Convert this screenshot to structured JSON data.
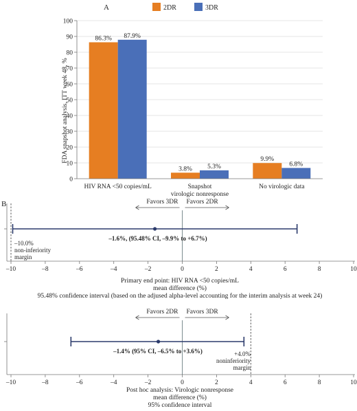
{
  "chart_data": [
    {
      "type": "bar",
      "panel": "A",
      "ylabel": "FDA snapshot analysis, ITT week 48, %",
      "ylim": [
        0,
        100
      ],
      "yticks": [
        0,
        10,
        20,
        30,
        40,
        50,
        60,
        70,
        80,
        90,
        100
      ],
      "grid": true,
      "legend_placement": "top-center",
      "categories": [
        {
          "lines": [
            "HIV RNA <50 copies/mL"
          ]
        },
        {
          "lines": [
            "Snapshot",
            "virologic nonresponse"
          ]
        },
        {
          "lines": [
            "No virologic data"
          ]
        }
      ],
      "series": [
        {
          "name": "2DR",
          "color": "#E67E22",
          "values": [
            86.3,
            3.8,
            9.9
          ],
          "labels": [
            "86.3%",
            "3.8%",
            "9.9%"
          ]
        },
        {
          "name": "3DR",
          "color": "#4A6FB8",
          "values": [
            87.9,
            5.3,
            6.8
          ],
          "labels": [
            "87.9%",
            "5.3%",
            "6.8%"
          ]
        }
      ]
    },
    {
      "type": "forest",
      "panel": "B",
      "xlim": [
        -10,
        10
      ],
      "xticks": [
        -10,
        -8,
        -6,
        -4,
        -2,
        0,
        2,
        4,
        6,
        8,
        10
      ],
      "estimate": -1.6,
      "ci": [
        -9.9,
        6.7
      ],
      "estimate_label": "–1.6%, (95.48% CI, –9.9% to +6.7%)",
      "margin": -10,
      "margin_label": [
        "–10.0%",
        "non-inferiority",
        "margin"
      ],
      "favors_left": "Favors 3DR",
      "favors_right": "Favors 2DR",
      "caption": [
        "Primary end point: HIV RNA <50 copies/mL",
        "mean difference (%)",
        "95.48% confidence interval (based on the adjused alpha-level accounting for the interim analysis at week 24)"
      ]
    },
    {
      "type": "forest",
      "xlim": [
        -10,
        10
      ],
      "xticks": [
        -10,
        -8,
        -6,
        -4,
        -2,
        0,
        2,
        4,
        6,
        8,
        10
      ],
      "estimate": -1.4,
      "ci": [
        -6.5,
        3.6
      ],
      "estimate_label": "–1.4% (95% CI, –6.5% to +3.6%)",
      "margin": 4,
      "margin_label": [
        "+4.0%",
        "noninferiority",
        "margin"
      ],
      "favors_left": "Favors 2DR",
      "favors_right": "Favors 3DR",
      "caption": [
        "Post hoc analysis: Virologic nonresponse",
        "mean difference (%)",
        "95% confidence interval"
      ]
    }
  ],
  "colors": {
    "line": "#2B3A6B",
    "axis": "#777777",
    "grid": "#cccccc"
  }
}
